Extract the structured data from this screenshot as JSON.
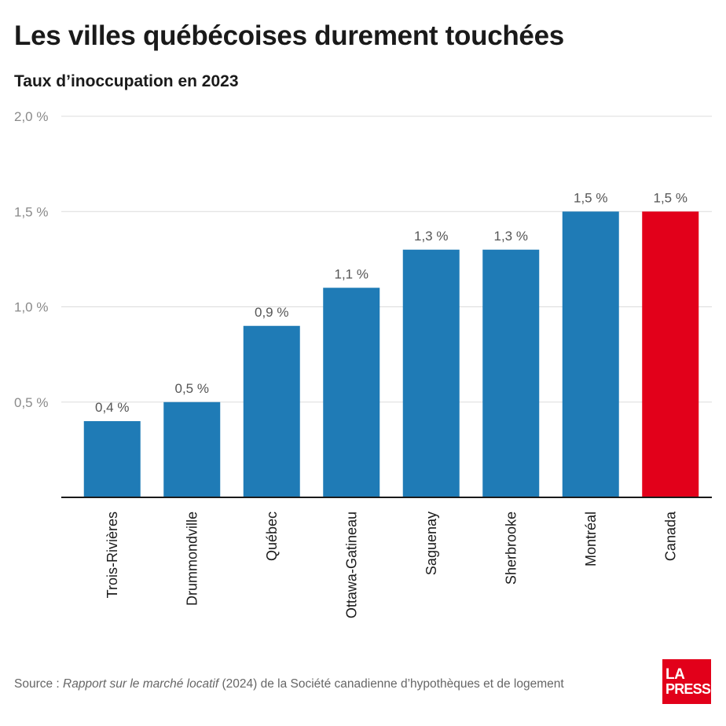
{
  "title": "Les villes québécoises durement touchées",
  "subtitle": "Taux d’inoccupation en 2023",
  "source": {
    "prefix": "Source : ",
    "italic": "Rapport sur le marché locatif",
    "suffix": " (2024) de la Société canadienne d’hypothèques et de logement"
  },
  "logo": {
    "line1": "LA",
    "line2": "PRESSE"
  },
  "colors": {
    "bar": "#1f7bb6",
    "highlight": "#e2001a",
    "grid": "#dcdcdc",
    "axis": "#1a1a1a"
  },
  "chart_data": {
    "type": "bar",
    "categories": [
      "Trois-Rivières",
      "Drummondville",
      "Québec",
      "Ottawa-Gatineau",
      "Saguenay",
      "Sherbrooke",
      "Montréal",
      "Canada"
    ],
    "values": [
      0.4,
      0.5,
      0.9,
      1.1,
      1.3,
      1.3,
      1.5,
      1.5
    ],
    "value_labels": [
      "0,4 %",
      "0,5 %",
      "0,9 %",
      "1,1 %",
      "1,3 %",
      "1,3 %",
      "1,5 %",
      "1,5 %"
    ],
    "highlight_category": "Canada",
    "ylim": [
      0,
      2.0
    ],
    "yticks": [
      0.5,
      1.0,
      1.5,
      2.0
    ],
    "ytick_labels": [
      "0,5 %",
      "1,0 %",
      "1,5 %",
      "2,0 %"
    ],
    "grid": true
  }
}
